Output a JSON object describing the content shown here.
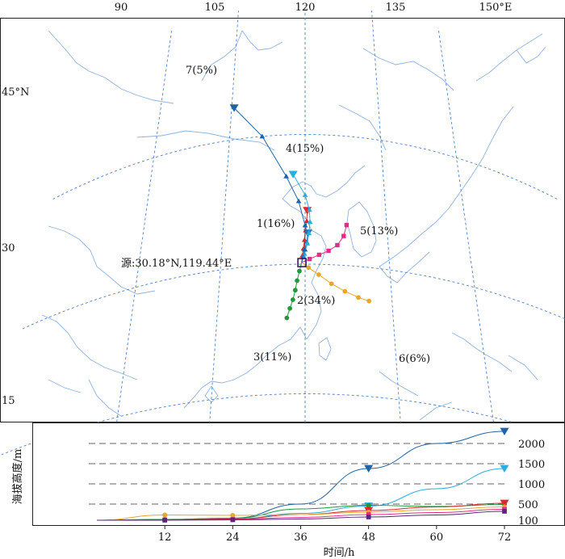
{
  "chart_data": [
    {
      "type": "scatter",
      "panel": "trajectory map",
      "lon_ticks": [
        "90",
        "105",
        "120",
        "135",
        "150°E"
      ],
      "lat_ticks": [
        "45°N",
        "30",
        "15"
      ],
      "source_label": "源:30.18°N,119.44°E",
      "source": {
        "lat": 30.18,
        "lon": 119.44
      },
      "clusters": [
        {
          "label": "1(16%)",
          "color": "#e0272b",
          "marker": "triangle-down",
          "points": [
            [
              119.4,
              30.2
            ],
            [
              119.5,
              31.0
            ],
            [
              119.7,
              31.8
            ],
            [
              119.9,
              32.8
            ],
            [
              120.1,
              33.9
            ],
            [
              120.3,
              35.0
            ],
            [
              120.4,
              36.2
            ]
          ]
        },
        {
          "label": "2(34%)",
          "color": "#2a74b5",
          "marker": "triangle-down",
          "points": [
            [
              119.4,
              30.2
            ],
            [
              119.7,
              30.9
            ],
            [
              120.0,
              31.7
            ],
            [
              120.3,
              32.6
            ],
            [
              120.5,
              33.6
            ]
          ]
        },
        {
          "label": "3(11%)",
          "color": "#1e9a3a",
          "marker": "circle",
          "points": [
            [
              119.4,
              30.2
            ],
            [
              119.0,
              29.2
            ],
            [
              118.6,
              28.1
            ],
            [
              118.3,
              27.0
            ],
            [
              117.9,
              25.9
            ],
            [
              117.4,
              24.9
            ],
            [
              116.9,
              23.8
            ]
          ]
        },
        {
          "label": "4(15%)",
          "color": "#29aee0",
          "marker": "triangle-down",
          "points": [
            [
              119.4,
              30.2
            ],
            [
              119.9,
              31.2
            ],
            [
              120.4,
              32.4
            ],
            [
              120.7,
              33.6
            ],
            [
              120.9,
              34.9
            ],
            [
              120.8,
              36.3
            ],
            [
              120.0,
              38.0
            ],
            [
              117.7,
              40.4
            ]
          ]
        },
        {
          "label": "5(13%)",
          "color": "#e52b87",
          "marker": "square",
          "points": [
            [
              119.4,
              30.2
            ],
            [
              120.8,
              30.6
            ],
            [
              122.5,
              31.1
            ],
            [
              124.2,
              31.6
            ],
            [
              125.8,
              32.3
            ],
            [
              127.0,
              33.4
            ],
            [
              127.6,
              34.7
            ]
          ]
        },
        {
          "label": "6(6%)",
          "color": "#e8a62b",
          "marker": "circle",
          "points": [
            [
              119.4,
              30.2
            ],
            [
              120.6,
              29.6
            ],
            [
              122.4,
              28.8
            ],
            [
              124.6,
              27.8
            ],
            [
              126.9,
              27.0
            ],
            [
              129.2,
              26.4
            ],
            [
              131.0,
              26.1
            ]
          ]
        },
        {
          "label": "7(5%)",
          "color": "#1d63a8",
          "marker": "triangle-down",
          "points": [
            [
              119.4,
              30.2
            ],
            [
              119.9,
              31.7
            ],
            [
              120.0,
              34.5
            ],
            [
              118.8,
              37.3
            ],
            [
              116.4,
              40.2
            ],
            [
              111.5,
              45.0
            ],
            [
              105.5,
              48.7
            ]
          ]
        }
      ]
    },
    {
      "type": "line",
      "panel": "height profile",
      "xlabel": "时间/h",
      "ylabel": "海拔高度/m",
      "x_ticks": [
        "12",
        "24",
        "36",
        "48",
        "60",
        "72"
      ],
      "y_ticks": [
        "100",
        "500",
        "1000",
        "1500",
        "2000"
      ],
      "x": [
        0,
        12,
        24,
        36,
        48,
        60,
        72
      ],
      "series": [
        {
          "label": "7",
          "color": "#1d63a8",
          "marker": "triangle-down",
          "values": [
            100,
            120,
            150,
            500,
            1380,
            2000,
            2300
          ]
        },
        {
          "label": "4",
          "color": "#29aee0",
          "marker": "triangle-down",
          "values": [
            100,
            110,
            130,
            270,
            450,
            880,
            1380
          ]
        },
        {
          "label": "3",
          "color": "#1e9a3a",
          "marker": "circle",
          "values": [
            100,
            120,
            150,
            380,
            470,
            440,
            490
          ]
        },
        {
          "label": "1",
          "color": "#e0272b",
          "marker": "triangle-down",
          "values": [
            100,
            110,
            130,
            240,
            340,
            430,
            520
          ]
        },
        {
          "label": "6",
          "color": "#e8a62b",
          "marker": "circle",
          "values": [
            100,
            230,
            220,
            240,
            300,
            360,
            430
          ]
        },
        {
          "label": "5",
          "color": "#e52b87",
          "marker": "square",
          "values": [
            100,
            110,
            120,
            170,
            240,
            290,
            370
          ]
        },
        {
          "label": "2",
          "color": "#5a2582",
          "marker": "square",
          "values": [
            100,
            100,
            110,
            130,
            180,
            230,
            320
          ]
        }
      ]
    }
  ]
}
